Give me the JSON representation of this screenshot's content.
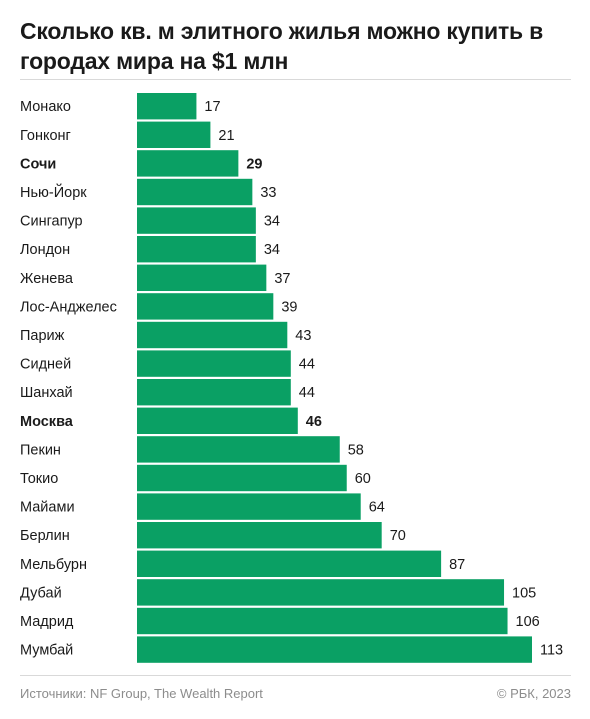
{
  "title": "Сколько кв. м элитного жилья можно купить в городах мира на $1 млн",
  "footer": {
    "source": "Источники: NF Group, The Wealth Report",
    "copyright": "© РБК, 2023"
  },
  "colors": {
    "bar": "#0aa064",
    "text": "#1a1a1a",
    "muted": "#8c8c8c"
  },
  "chart_data": {
    "type": "bar",
    "orientation": "horizontal",
    "title": "Сколько кв. м элитного жилья можно купить в городах мира на $1 млн",
    "categories": [
      "Монако",
      "Гонконг",
      "Сочи",
      "Нью-Йорк",
      "Сингапур",
      "Лондон",
      "Женева",
      "Лос-Анджелес",
      "Париж",
      "Сидней",
      "Шанхай",
      "Москва",
      "Пекин",
      "Токио",
      "Майами",
      "Берлин",
      "Мельбурн",
      "Дубай",
      "Мадрид",
      "Мумбай"
    ],
    "values": [
      17,
      21,
      29,
      33,
      34,
      34,
      37,
      39,
      43,
      44,
      44,
      46,
      58,
      60,
      64,
      70,
      87,
      105,
      106,
      113
    ],
    "highlighted": [
      "Сочи",
      "Москва"
    ],
    "xlim": [
      0,
      113
    ],
    "grid": false,
    "legend": "none"
  }
}
